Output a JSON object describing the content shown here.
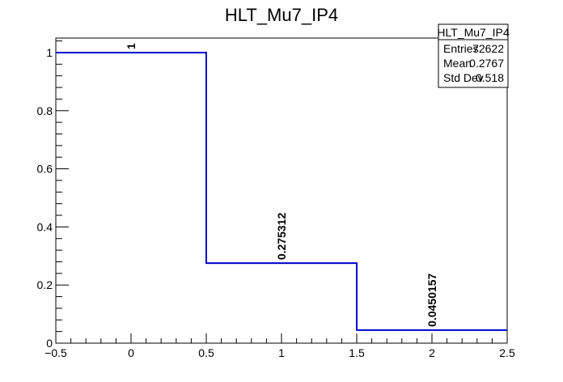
{
  "chart_data": {
    "type": "histogram",
    "title": "HLT_Mu7_IP4",
    "xlabel": "",
    "ylabel": "",
    "bins": [
      {
        "x_low": -0.5,
        "x_high": 0.5,
        "value": 1,
        "label": "1"
      },
      {
        "x_low": 0.5,
        "x_high": 1.5,
        "value": 0.275312,
        "label": "0.275312"
      },
      {
        "x_low": 1.5,
        "x_high": 2.5,
        "value": 0.0450157,
        "label": "0.0450157"
      }
    ],
    "xlim": [
      -0.5,
      2.5
    ],
    "ylim": [
      0,
      1.05
    ],
    "x_ticks": [
      {
        "value": -0.5,
        "label": "−0.5"
      },
      {
        "value": 0,
        "label": "0"
      },
      {
        "value": 0.5,
        "label": "0.5"
      },
      {
        "value": 1,
        "label": "1"
      },
      {
        "value": 1.5,
        "label": "1.5"
      },
      {
        "value": 2,
        "label": "2"
      },
      {
        "value": 2.5,
        "label": "2.5"
      }
    ],
    "y_ticks": [
      {
        "value": 0,
        "label": "0"
      },
      {
        "value": 0.2,
        "label": "0.2"
      },
      {
        "value": 0.4,
        "label": "0.4"
      },
      {
        "value": 0.6,
        "label": "0.6"
      },
      {
        "value": 0.8,
        "label": "0.8"
      },
      {
        "value": 1,
        "label": "1"
      }
    ],
    "line_color": "#0000cc",
    "grid": false,
    "legend": "none"
  },
  "stats_box": {
    "title": "HLT_Mu7_IP4",
    "rows": [
      {
        "key": "Entries",
        "value": "72622"
      },
      {
        "key": "Mean",
        "value": "0.2767"
      },
      {
        "key": "Std Dev",
        "value": "0.518"
      }
    ]
  }
}
